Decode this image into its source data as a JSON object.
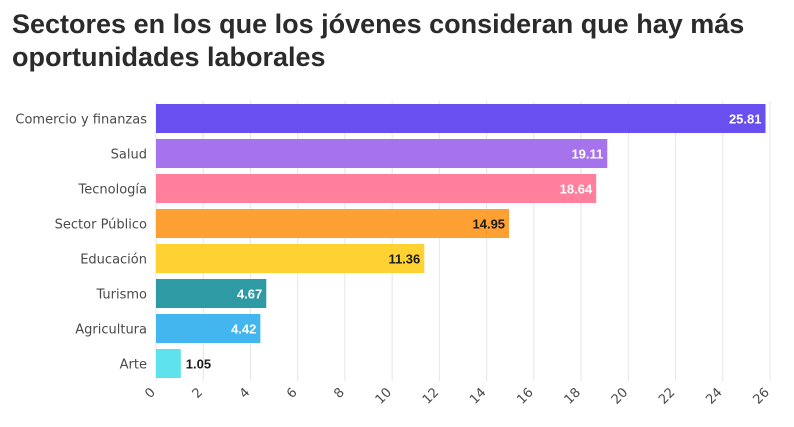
{
  "chart_data": {
    "type": "bar",
    "orientation": "horizontal",
    "title": "Sectores en los que los jóvenes consideran que hay más oportunidades laborales",
    "xlabel": "",
    "ylabel": "",
    "categories": [
      "Comercio y finanzas",
      "Salud",
      "Tecnología",
      "Sector Público",
      "Educación",
      "Turismo",
      "Agricultura",
      "Arte"
    ],
    "values": [
      25.81,
      19.11,
      18.64,
      14.95,
      11.36,
      4.67,
      4.42,
      1.05
    ],
    "value_labels": [
      "25.81",
      "19.11",
      "18.64",
      "14.95",
      "11.36",
      "4.67",
      "4.42",
      "1.05"
    ],
    "colors": [
      "#6a4ff0",
      "#a673ec",
      "#ff7f9c",
      "#ffa033",
      "#ffd232",
      "#2e9aa4",
      "#43b6ef",
      "#5ee3ec"
    ],
    "value_label_colors": [
      "#ffffff",
      "#ffffff",
      "#ffffff",
      "#1a1a1a",
      "#1a1a1a",
      "#ffffff",
      "#ffffff",
      "#1a1a1a"
    ],
    "xlim": [
      0,
      26
    ],
    "xticks": [
      "0",
      "2",
      "4",
      "6",
      "8",
      "10",
      "12",
      "14",
      "16",
      "18",
      "20",
      "22",
      "24",
      "26"
    ],
    "grid": true,
    "legend": "none"
  }
}
